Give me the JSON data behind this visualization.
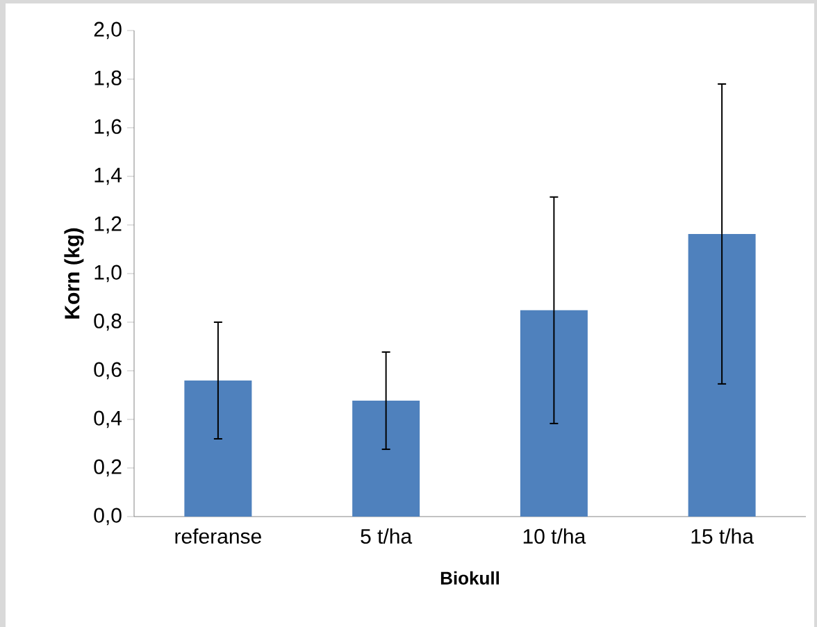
{
  "chart_data": {
    "type": "bar",
    "xlabel": "Biokull",
    "ylabel": "Korn (kg)",
    "categories": [
      "referanse",
      "5 t/ha",
      "10 t/ha",
      "15 t/ha"
    ],
    "values": [
      0.56,
      0.477,
      0.849,
      1.163
    ],
    "errors": [
      0.24,
      0.2,
      0.466,
      0.617
    ],
    "color": "#4f81bd",
    "ylim": [
      0,
      2
    ],
    "yticks": [
      {
        "value": 0,
        "label": "0,0"
      },
      {
        "value": 0.2,
        "label": "0,2"
      },
      {
        "value": 0.4,
        "label": "0,4"
      },
      {
        "value": 0.6,
        "label": "0,6"
      },
      {
        "value": 0.8,
        "label": "0,8"
      },
      {
        "value": 1.0,
        "label": "1,0"
      },
      {
        "value": 1.2,
        "label": "1,2"
      },
      {
        "value": 1.4,
        "label": "1,4"
      },
      {
        "value": 1.6,
        "label": "1,6"
      },
      {
        "value": 1.8,
        "label": "1,8"
      },
      {
        "value": 2.0,
        "label": "2,0"
      }
    ],
    "grid": false
  }
}
